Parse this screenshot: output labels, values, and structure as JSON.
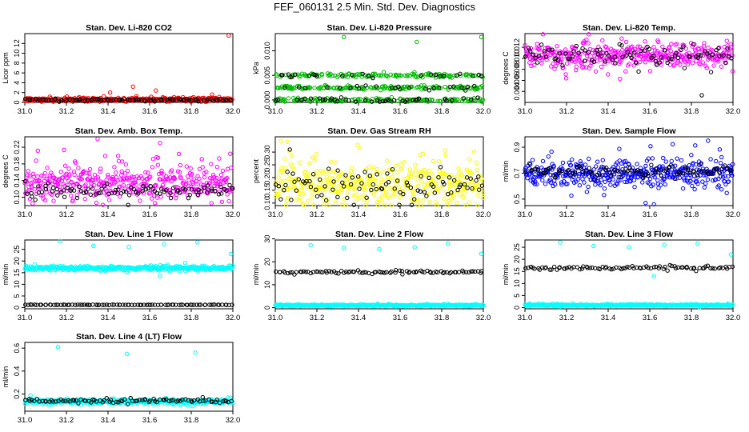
{
  "page_title": "FEF_060131  2.5 Min. Std. Dev. Diagnostics",
  "chart_data": [
    {
      "type": "scatter",
      "title": "Stan. Dev. Li-820 CO2",
      "ylabel": "Licor ppm",
      "xlim": [
        31.0,
        32.0
      ],
      "ylim": [
        0,
        14
      ],
      "x_ticks": [
        "31.0",
        "31.2",
        "31.4",
        "31.6",
        "31.8",
        "32.0"
      ],
      "y_ticks": [
        {
          "v": 0,
          "t": "0"
        },
        {
          "v": 2,
          "t": "2"
        },
        {
          "v": 4,
          "t": "4"
        },
        {
          "v": 6,
          "t": "6"
        },
        {
          "v": 8,
          "t": "8"
        },
        {
          "v": 10,
          "t": "10"
        },
        {
          "v": 12,
          "t": "12"
        }
      ],
      "series": [
        {
          "name": "primary",
          "color": "#ff0000",
          "base": 0.6,
          "noise": 0.3,
          "n": 300,
          "seed": 11,
          "outliers": [
            [
              31.98,
              13.6
            ],
            [
              31.52,
              3.2
            ],
            [
              31.63,
              2.4
            ],
            [
              31.41,
              2.0
            ],
            [
              31.9,
              1.6
            ]
          ]
        },
        {
          "name": "secondary",
          "color": "#000000",
          "base": 0.5,
          "noise": 0.15,
          "n": 90,
          "seed": 12,
          "outliers": []
        }
      ]
    },
    {
      "type": "scatter",
      "title": "Stan. Dev. Li-820 Pressure",
      "ylabel": "kPa",
      "xlim": [
        31.0,
        32.0
      ],
      "ylim": [
        -0.0005,
        0.0135
      ],
      "x_ticks": [
        "31.0",
        "31.2",
        "31.4",
        "31.6",
        "31.8",
        "32.0"
      ],
      "y_ticks": [
        {
          "v": 0.0,
          "t": "0.000"
        },
        {
          "v": 0.005,
          "t": "0.005"
        },
        {
          "v": 0.01,
          "t": "0.010"
        }
      ],
      "series": [
        {
          "name": "primary",
          "color": "#00bb00",
          "base": 0.0,
          "levels": [
            0.0,
            0.0025,
            0.005
          ],
          "jitter": 0.0002,
          "n": 450,
          "seed": 21,
          "outliers": [
            [
              31.33,
              0.0128
            ],
            [
              31.99,
              0.0128
            ],
            [
              31.68,
              0.0118
            ]
          ]
        },
        {
          "name": "secondary",
          "color": "#000000",
          "base": 0.0,
          "levels": [
            0.0,
            0.0025,
            0.005
          ],
          "jitter": 0.0002,
          "n": 90,
          "seed": 22,
          "outliers": []
        }
      ]
    },
    {
      "type": "scatter",
      "title": "Stan. Dev. Li-820 Temp.",
      "ylabel": "degrees C",
      "xlim": [
        31.0,
        32.0
      ],
      "ylim": [
        0.002,
        0.0145
      ],
      "x_ticks": [
        "31.0",
        "31.2",
        "31.4",
        "31.6",
        "31.8",
        "32.0"
      ],
      "y_ticks": [
        {
          "v": 0.004,
          "t": "0.004"
        },
        {
          "v": 0.006,
          "t": "0.006"
        },
        {
          "v": 0.008,
          "t": "0.008"
        },
        {
          "v": 0.01,
          "t": "0.010"
        },
        {
          "v": 0.012,
          "t": "0.012"
        }
      ],
      "series": [
        {
          "name": "primary",
          "color": "#ff00ff",
          "base": 0.0105,
          "noise": 0.0015,
          "n": 400,
          "seed": 31,
          "outliers": []
        },
        {
          "name": "secondary",
          "color": "#000000",
          "base": 0.0105,
          "noise": 0.0012,
          "n": 90,
          "seed": 32,
          "outliers": [
            [
              31.85,
              0.0033
            ]
          ]
        }
      ]
    },
    {
      "type": "scatter",
      "title": "Stan. Dev. Amb. Box Temp.",
      "ylabel": "degrees C",
      "xlim": [
        31.0,
        32.0
      ],
      "ylim": [
        0.08,
        0.245
      ],
      "x_ticks": [
        "31.0",
        "31.2",
        "31.4",
        "31.6",
        "31.8",
        "32.0"
      ],
      "y_ticks": [
        {
          "v": 0.1,
          "t": "0.10"
        },
        {
          "v": 0.14,
          "t": "0.14"
        },
        {
          "v": 0.18,
          "t": "0.18"
        },
        {
          "v": 0.22,
          "t": "0.22"
        }
      ],
      "series": [
        {
          "name": "primary",
          "color": "#ff00ff",
          "base": 0.135,
          "noise": 0.03,
          "n": 400,
          "seed": 41,
          "outliers": [
            [
              31.35,
              0.24
            ],
            [
              31.65,
              0.23
            ]
          ]
        },
        {
          "name": "secondary",
          "color": "#000000",
          "base": 0.115,
          "noise": 0.012,
          "n": 90,
          "seed": 42,
          "outliers": []
        }
      ]
    },
    {
      "type": "scatter",
      "title": "Stan. Dev. Gas Stream RH",
      "ylabel": "percent",
      "xlim": [
        31.0,
        32.0
      ],
      "ylim": [
        0.09,
        0.36
      ],
      "x_ticks": [
        "31.0",
        "31.2",
        "31.4",
        "31.6",
        "31.8",
        "32.0"
      ],
      "y_ticks": [
        {
          "v": 0.1,
          "t": "0.10"
        },
        {
          "v": 0.15,
          "t": "0.15"
        },
        {
          "v": 0.2,
          "t": "0.20"
        },
        {
          "v": 0.25,
          "t": "0.25"
        },
        {
          "v": 0.3,
          "t": "0.30"
        }
      ],
      "series": [
        {
          "name": "primary",
          "color": "#ffff00",
          "base": 0.18,
          "noise": 0.055,
          "n": 400,
          "seed": 51,
          "outliers": [
            [
              31.06,
              0.34
            ]
          ]
        },
        {
          "name": "secondary",
          "color": "#000000",
          "base": 0.17,
          "noise": 0.045,
          "n": 90,
          "seed": 52,
          "outliers": [
            [
              31.07,
              0.31
            ]
          ]
        }
      ]
    },
    {
      "type": "scatter",
      "title": "Stan. Dev. Sample Flow",
      "ylabel": "ml/min",
      "xlim": [
        31.0,
        32.0
      ],
      "ylim": [
        0.45,
        0.98
      ],
      "x_ticks": [
        "31.0",
        "31.2",
        "31.4",
        "31.6",
        "31.8",
        "32.0"
      ],
      "y_ticks": [
        {
          "v": 0.5,
          "t": "0.5"
        },
        {
          "v": 0.7,
          "t": "0.7"
        },
        {
          "v": 0.9,
          "t": "0.9"
        }
      ],
      "series": [
        {
          "name": "primary",
          "color": "#0000ff",
          "base": 0.7,
          "noise": 0.07,
          "n": 420,
          "seed": 61,
          "outliers": [
            [
              31.88,
              0.95
            ],
            [
              31.58,
              0.47
            ],
            [
              31.62,
              0.46
            ]
          ]
        },
        {
          "name": "secondary",
          "color": "#000000",
          "base": 0.71,
          "noise": 0.03,
          "n": 90,
          "seed": 62,
          "outliers": []
        }
      ]
    },
    {
      "type": "scatter",
      "title": "Stan. Dev. Line 1 Flow",
      "ylabel": "ml/min",
      "xlim": [
        31.0,
        32.0
      ],
      "ylim": [
        -0.5,
        29
      ],
      "x_ticks": [
        "31.0",
        "31.2",
        "31.4",
        "31.6",
        "31.8",
        "32.0"
      ],
      "y_ticks": [
        {
          "v": 0,
          "t": "0"
        },
        {
          "v": 5,
          "t": "5"
        },
        {
          "v": 10,
          "t": "10"
        },
        {
          "v": 15,
          "t": "15"
        },
        {
          "v": 20,
          "t": "20"
        },
        {
          "v": 25,
          "t": "25"
        }
      ],
      "series": [
        {
          "name": "primary",
          "color": "#00ffff",
          "base": 17,
          "noise": 0.6,
          "n": 380,
          "seed": 71,
          "outliers": [
            [
              31.17,
              28.5
            ],
            [
              31.33,
              26.5
            ],
            [
              31.5,
              26.0
            ],
            [
              31.67,
              27.2
            ],
            [
              31.83,
              28.0
            ],
            [
              31.99,
              23.0
            ],
            [
              31.65,
              13.5
            ]
          ]
        },
        {
          "name": "secondary",
          "color": "#000000",
          "base": 1.2,
          "noise": 0.05,
          "n": 90,
          "seed": 72,
          "outliers": []
        }
      ]
    },
    {
      "type": "scatter",
      "title": "Stan. Dev. Line 2 Flow",
      "ylabel": "ml/min",
      "xlim": [
        31.0,
        32.0
      ],
      "ylim": [
        -0.5,
        29.5
      ],
      "x_ticks": [
        "31.0",
        "31.2",
        "31.4",
        "31.6",
        "31.8",
        "32.0"
      ],
      "y_ticks": [
        {
          "v": 0,
          "t": "0"
        },
        {
          "v": 10,
          "t": "10"
        },
        {
          "v": 20,
          "t": "20"
        },
        {
          "v": 30,
          "t": "30"
        }
      ],
      "series": [
        {
          "name": "primary",
          "color": "#00ffff",
          "base": 1.0,
          "noise": 0.25,
          "n": 380,
          "seed": 81,
          "outliers": [
            [
              31.17,
              27.2
            ],
            [
              31.33,
              26.0
            ],
            [
              31.5,
              25.5
            ],
            [
              31.67,
              26.3
            ],
            [
              31.83,
              28.0
            ],
            [
              31.99,
              23.5
            ]
          ]
        },
        {
          "name": "secondary",
          "color": "#000000",
          "base": 15.5,
          "noise": 0.4,
          "n": 90,
          "seed": 82,
          "outliers": []
        }
      ]
    },
    {
      "type": "scatter",
      "title": "Stan. Dev. Line 3 Flow",
      "ylabel": "ml/min",
      "xlim": [
        31.0,
        32.0
      ],
      "ylim": [
        -0.5,
        28
      ],
      "x_ticks": [
        "31.0",
        "31.2",
        "31.4",
        "31.6",
        "31.8",
        "32.0"
      ],
      "y_ticks": [
        {
          "v": 0,
          "t": "0"
        },
        {
          "v": 5,
          "t": "5"
        },
        {
          "v": 10,
          "t": "10"
        },
        {
          "v": 15,
          "t": "15"
        },
        {
          "v": 20,
          "t": "20"
        },
        {
          "v": 25,
          "t": "25"
        }
      ],
      "series": [
        {
          "name": "primary",
          "color": "#00ffff",
          "base": 1.0,
          "noise": 0.25,
          "n": 380,
          "seed": 91,
          "outliers": [
            [
              31.17,
              27.0
            ],
            [
              31.33,
              25.5
            ],
            [
              31.5,
              25.0
            ],
            [
              31.67,
              26.0
            ],
            [
              31.83,
              26.5
            ],
            [
              31.99,
              22.0
            ],
            [
              31.62,
              13.0
            ]
          ]
        },
        {
          "name": "secondary",
          "color": "#000000",
          "base": 16.5,
          "noise": 0.5,
          "n": 90,
          "seed": 92,
          "outliers": []
        }
      ]
    },
    {
      "type": "scatter",
      "title": "Stan. Dev. Line 4 (LT) Flow",
      "ylabel": "ml/min",
      "xlim": [
        31.0,
        32.0
      ],
      "ylim": [
        0.05,
        0.65
      ],
      "x_ticks": [
        "31.0",
        "31.2",
        "31.4",
        "31.6",
        "31.8",
        "32.0"
      ],
      "y_ticks": [
        {
          "v": 0.2,
          "t": "0.2"
        },
        {
          "v": 0.4,
          "t": "0.4"
        },
        {
          "v": 0.6,
          "t": "0.6"
        }
      ],
      "series": [
        {
          "name": "primary",
          "color": "#00ffff",
          "base": 0.135,
          "noise": 0.015,
          "n": 380,
          "seed": 101,
          "outliers": [
            [
              31.16,
              0.61
            ],
            [
              31.49,
              0.55
            ],
            [
              31.82,
              0.56
            ]
          ]
        },
        {
          "name": "secondary",
          "color": "#000000",
          "base": 0.14,
          "noise": 0.012,
          "n": 90,
          "seed": 102,
          "outliers": []
        }
      ]
    }
  ]
}
